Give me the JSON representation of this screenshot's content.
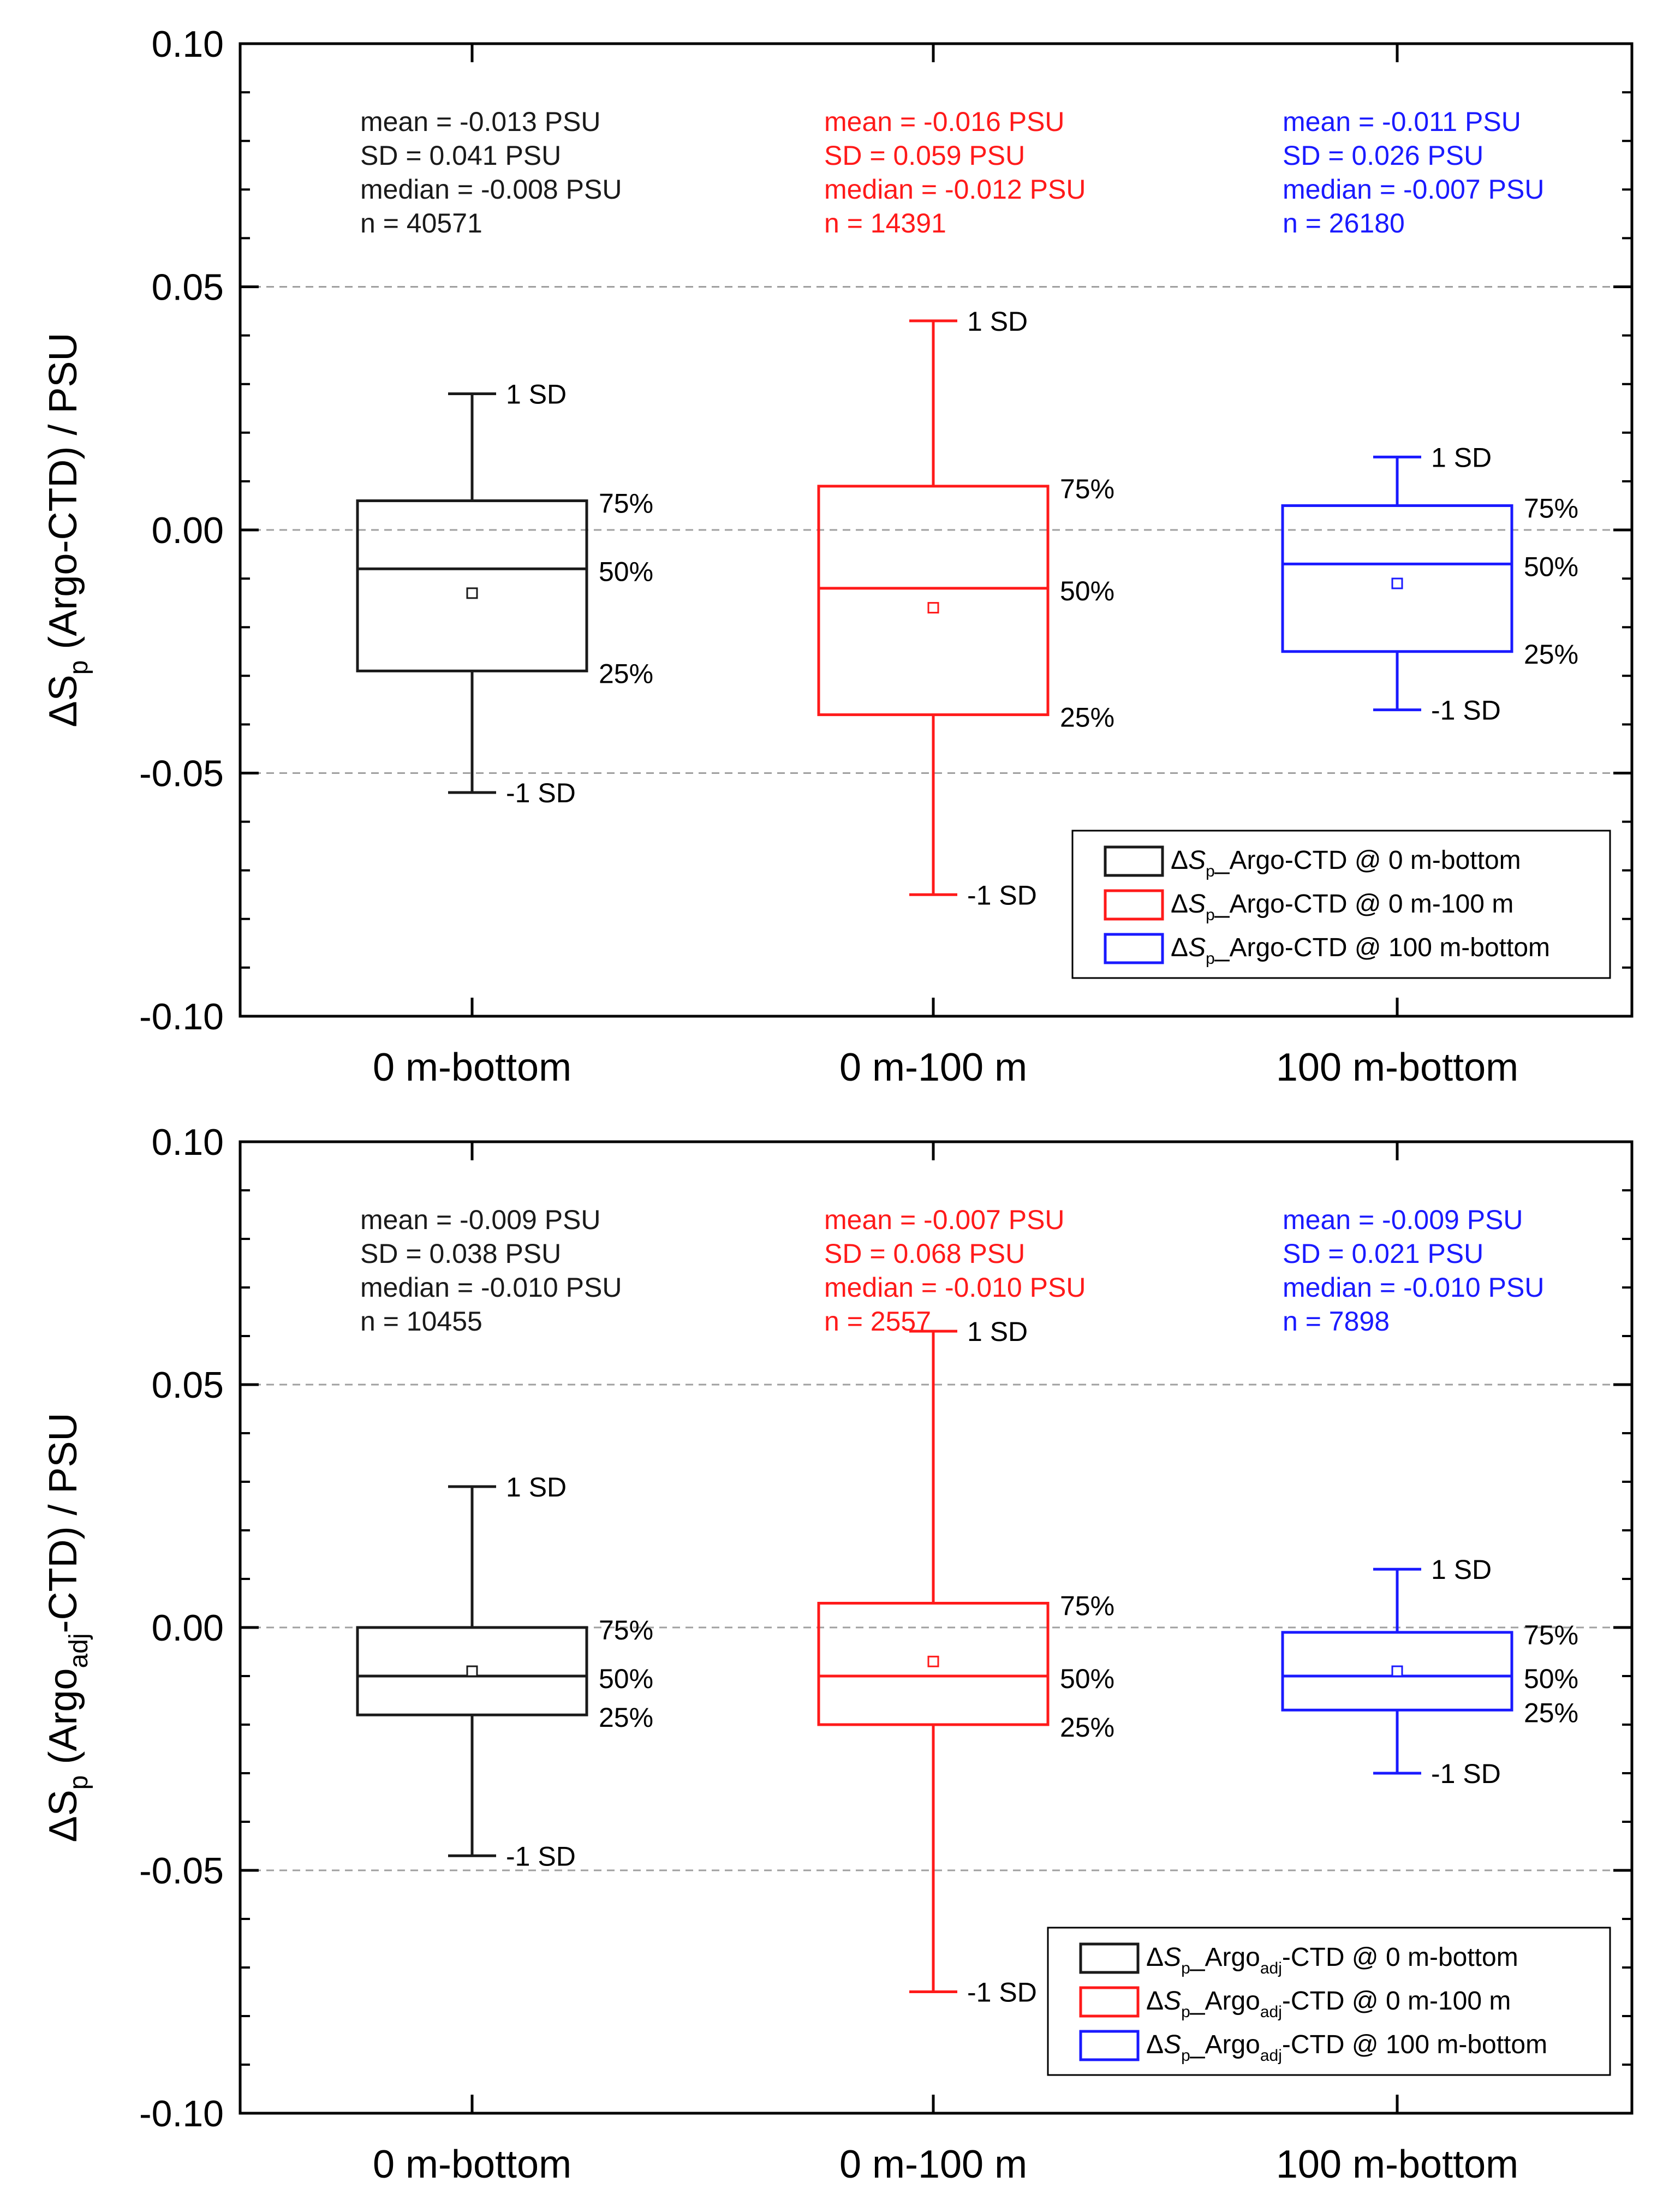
{
  "colors": {
    "series0": "#1a1a1a",
    "series1": "#ff1a1a",
    "series2": "#1a1aff",
    "grid": "#a0a0a0",
    "axis": "#000000"
  },
  "chart_data": [
    {
      "type": "box",
      "panel": "top",
      "ylabel": {
        "prefix": "ΔS",
        "sub": "p",
        "mid": " (Argo",
        "sub2": "",
        "suffix": "-CTD) / PSU"
      },
      "ylim": [
        -0.1,
        0.1
      ],
      "yticks": [
        -0.1,
        -0.05,
        0.0,
        0.05,
        0.1
      ],
      "ytick_labels": [
        "-0.10",
        "-0.05",
        "0.00",
        "0.05",
        "0.10"
      ],
      "gridlines": [
        -0.05,
        0.0,
        0.05
      ],
      "categories": [
        "0 m-bottom",
        "0 m-100 m",
        "100 m-bottom"
      ],
      "series": [
        {
          "name": "0 m-bottom",
          "plus_sd": 0.028,
          "q3": 0.006,
          "median": -0.008,
          "mean": -0.013,
          "q1": -0.029,
          "minus_sd": -0.054,
          "stats": [
            "mean = -0.013 PSU",
            "SD = 0.041 PSU",
            "median = -0.008 PSU",
            "n = 40571"
          ]
        },
        {
          "name": "0 m-100 m",
          "plus_sd": 0.043,
          "q3": 0.009,
          "median": -0.012,
          "mean": -0.016,
          "q1": -0.038,
          "minus_sd": -0.075,
          "stats": [
            "mean = -0.016 PSU",
            "SD = 0.059 PSU",
            "median = -0.012 PSU",
            "n = 14391"
          ]
        },
        {
          "name": "100 m-bottom",
          "plus_sd": 0.015,
          "q3": 0.005,
          "median": -0.007,
          "mean": -0.011,
          "q1": -0.025,
          "minus_sd": -0.037,
          "stats": [
            "mean = -0.011 PSU",
            "SD = 0.026 PSU",
            "median = -0.007 PSU",
            "n = 26180"
          ]
        }
      ],
      "box_labels": {
        "plus_sd": "1 SD",
        "q3": "75%",
        "median": "50%",
        "q1": "25%",
        "minus_sd": "-1 SD"
      },
      "legend": {
        "position": "bottom-right",
        "entries": [
          {
            "prefix": "Δ",
            "italic": "S",
            "sub": "p",
            "mid": "_Argo",
            "sub2": "",
            "suffix": "-CTD @ 0 m-bottom"
          },
          {
            "prefix": "Δ",
            "italic": "S",
            "sub": "p",
            "mid": "_Argo",
            "sub2": "",
            "suffix": "-CTD @ 0 m-100 m"
          },
          {
            "prefix": "Δ",
            "italic": "S",
            "sub": "p",
            "mid": "_Argo",
            "sub2": "",
            "suffix": "-CTD @ 100 m-bottom"
          }
        ]
      }
    },
    {
      "type": "box",
      "panel": "bottom",
      "ylabel": {
        "prefix": "ΔS",
        "sub": "p",
        "mid": " (Argo",
        "sub2": "adj",
        "suffix": "-CTD) / PSU"
      },
      "ylim": [
        -0.1,
        0.1
      ],
      "yticks": [
        -0.1,
        -0.05,
        0.0,
        0.05,
        0.1
      ],
      "ytick_labels": [
        "-0.10",
        "-0.05",
        "0.00",
        "0.05",
        "0.10"
      ],
      "gridlines": [
        -0.05,
        0.0,
        0.05
      ],
      "categories": [
        "0 m-bottom",
        "0 m-100 m",
        "100 m-bottom"
      ],
      "series": [
        {
          "name": "0 m-bottom",
          "plus_sd": 0.029,
          "q3": 0.0,
          "median": -0.01,
          "mean": -0.009,
          "q1": -0.018,
          "minus_sd": -0.047,
          "stats": [
            "mean = -0.009 PSU",
            "SD = 0.038 PSU",
            "median = -0.010 PSU",
            "n = 10455"
          ]
        },
        {
          "name": "0 m-100 m",
          "plus_sd": 0.061,
          "q3": 0.005,
          "median": -0.01,
          "mean": -0.007,
          "q1": -0.02,
          "minus_sd": -0.075,
          "stats": [
            "mean = -0.007 PSU",
            "SD = 0.068 PSU",
            "median = -0.010 PSU",
            "n = 2557"
          ]
        },
        {
          "name": "100 m-bottom",
          "plus_sd": 0.012,
          "q3": -0.001,
          "median": -0.01,
          "mean": -0.009,
          "q1": -0.017,
          "minus_sd": -0.03,
          "stats": [
            "mean = -0.009 PSU",
            "SD = 0.021 PSU",
            "median = -0.010 PSU",
            "n = 7898"
          ]
        }
      ],
      "box_labels": {
        "plus_sd": "1 SD",
        "q3": "75%",
        "median": "50%",
        "q1": "25%",
        "minus_sd": "-1 SD"
      },
      "legend": {
        "position": "bottom-right",
        "entries": [
          {
            "prefix": "Δ",
            "italic": "S",
            "sub": "p",
            "mid": "_Argo",
            "sub2": "adj",
            "suffix": "-CTD @ 0 m-bottom"
          },
          {
            "prefix": "Δ",
            "italic": "S",
            "sub": "p",
            "mid": "_Argo",
            "sub2": "adj",
            "suffix": "-CTD @ 0 m-100 m"
          },
          {
            "prefix": "Δ",
            "italic": "S",
            "sub": "p",
            "mid": "_Argo",
            "sub2": "adj",
            "suffix": "-CTD @ 100 m-bottom"
          }
        ]
      }
    }
  ]
}
